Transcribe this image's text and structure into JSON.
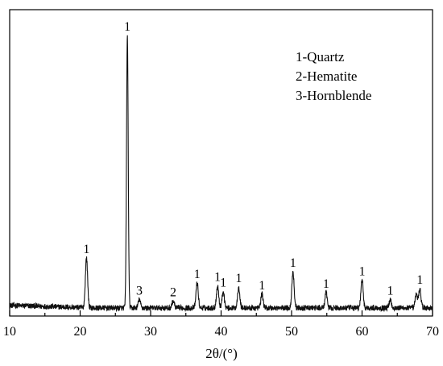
{
  "chart_data": {
    "type": "line",
    "title": "",
    "xlabel": "2θ/(°)",
    "ylabel": "",
    "xlim": [
      10,
      70
    ],
    "ylim": [
      0,
      100
    ],
    "xticks": [
      10,
      20,
      30,
      40,
      50,
      60,
      70
    ],
    "grid": false,
    "legend": {
      "placement": "top-right",
      "entries": [
        "1-Quartz",
        "2-Hematite",
        "3-Hornblende"
      ]
    },
    "background_noise_level": 2,
    "peaks": [
      {
        "x": 20.9,
        "y": 18,
        "label": "1"
      },
      {
        "x": 26.7,
        "y": 98,
        "label": "1"
      },
      {
        "x": 28.4,
        "y": 3,
        "label": "3"
      },
      {
        "x": 33.2,
        "y": 2.5,
        "label": "2"
      },
      {
        "x": 36.6,
        "y": 9,
        "label": "1"
      },
      {
        "x": 39.5,
        "y": 8,
        "label": "1"
      },
      {
        "x": 40.3,
        "y": 6,
        "label": "1"
      },
      {
        "x": 42.5,
        "y": 7.5,
        "label": "1"
      },
      {
        "x": 45.8,
        "y": 5,
        "label": "1"
      },
      {
        "x": 50.2,
        "y": 13,
        "label": "1"
      },
      {
        "x": 54.9,
        "y": 5.5,
        "label": "1"
      },
      {
        "x": 60.0,
        "y": 10,
        "label": "1"
      },
      {
        "x": 64.0,
        "y": 3,
        "label": "1"
      },
      {
        "x": 67.7,
        "y": 5,
        "label": ""
      },
      {
        "x": 68.2,
        "y": 7,
        "label": "1"
      }
    ]
  }
}
